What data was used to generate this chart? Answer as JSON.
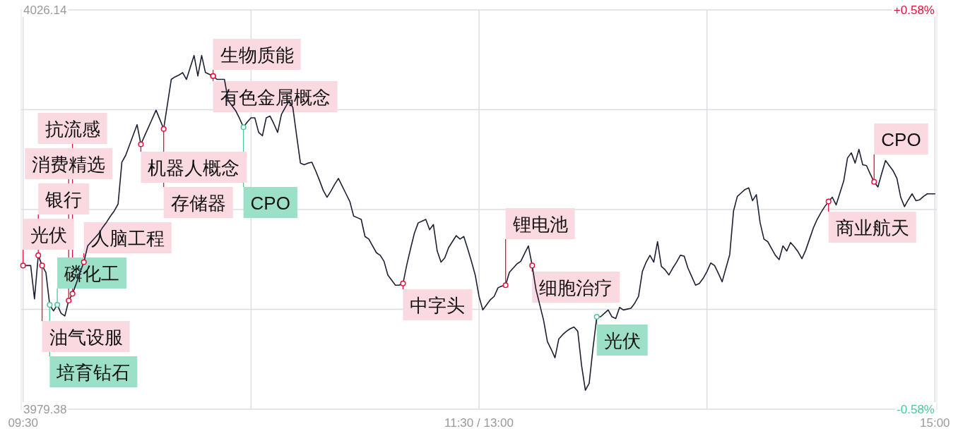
{
  "chart_data": {
    "type": "line",
    "categories": [
      "09:30",
      null,
      null,
      null,
      null,
      null,
      null,
      null,
      null,
      null,
      null,
      null,
      null,
      null,
      null,
      null,
      null,
      null,
      null,
      null,
      null,
      null,
      null,
      null,
      null,
      null,
      null,
      null,
      null,
      null,
      null,
      null,
      null,
      null,
      null,
      null,
      null,
      null,
      null,
      null,
      null,
      null,
      null,
      null,
      null,
      null,
      null,
      null,
      null,
      null,
      null,
      null,
      null,
      null,
      null,
      null,
      null,
      null,
      null,
      null,
      null,
      null,
      null,
      null,
      null,
      null,
      null,
      null,
      null,
      null,
      null,
      null,
      null,
      null,
      null,
      null,
      null,
      null,
      null,
      null,
      null,
      null,
      null,
      null,
      null,
      null,
      null,
      null,
      null,
      null,
      null,
      null,
      null,
      null,
      null,
      null,
      null,
      null,
      null,
      null,
      null,
      null,
      null,
      null,
      null,
      null,
      null,
      null,
      null,
      null,
      null,
      null,
      null,
      null,
      null,
      null,
      null,
      null,
      null,
      null,
      "11:30 / 13:00",
      null,
      null,
      null,
      null,
      null,
      null,
      null,
      null,
      null,
      null,
      null,
      null,
      null,
      null,
      null,
      null,
      null,
      null,
      null,
      null,
      null,
      null,
      null,
      null,
      null,
      null,
      null,
      null,
      null,
      null,
      null,
      null,
      null,
      null,
      null,
      null,
      null,
      null,
      null,
      null,
      null,
      null,
      null,
      null,
      null,
      null,
      null,
      null,
      null,
      null,
      null,
      null,
      null,
      null,
      null,
      null,
      null,
      null,
      null,
      null,
      null,
      null,
      null,
      null,
      null,
      null,
      null,
      null,
      null,
      null,
      null,
      null,
      null,
      null,
      null,
      null,
      null,
      null,
      null,
      null,
      null,
      null,
      null,
      null,
      null,
      null,
      null,
      null,
      null,
      null,
      null,
      null,
      null,
      null,
      null,
      null,
      null,
      null,
      null,
      null,
      null,
      null,
      null,
      null,
      null,
      null,
      null,
      null,
      null,
      null,
      null,
      null,
      null,
      null,
      null,
      null,
      null,
      null,
      null,
      "15:00"
    ],
    "series": [
      {
        "color": "#1d1f33",
        "values": [
          3996.2,
          3996.2,
          3996.2,
          3992.3,
          3997.4,
          3996.2,
          3995.4,
          3991.6,
          3990.9,
          3991.6,
          3990.6,
          3990.3,
          3992.1,
          3992.9,
          3994.1,
          3995.4,
          3996.6,
          3998.5,
          3999.0,
          3999.5,
          4000.0,
          4000.7,
          4001.3,
          4002.0,
          4002.6,
          4003.4,
          4008.3,
          4009.1,
          4010.3,
          4011.5,
          4012.7,
          4010.4,
          4011.4,
          4012.4,
          4013.4,
          4014.4,
          4013.3,
          4012.2,
          4015.1,
          4018.0,
          4018.3,
          4018.5,
          4018.8,
          4018.0,
          4019.4,
          4020.8,
          4018.4,
          4020.8,
          4018.8,
          4018.6,
          4018.4,
          4018.0,
          4018.0,
          4018.0,
          4015.5,
          4014.9,
          4014.3,
          4013.4,
          4012.4,
          4013.0,
          4013.5,
          4013.5,
          4011.8,
          4011.4,
          4013.5,
          4013.7,
          4012.8,
          4011.8,
          4013.9,
          4014.7,
          4015.5,
          4014.7,
          4011.4,
          4008.2,
          4008.0,
          4008.2,
          4008.3,
          4007.3,
          4006.2,
          4005.0,
          4004.2,
          4004.9,
          4005.7,
          4006.4,
          4005.5,
          4004.6,
          4003.7,
          4002.0,
          4001.8,
          4001.6,
          3999.6,
          3999.3,
          3998.5,
          3997.7,
          3997.4,
          3996.7,
          3995.1,
          3994.5,
          3993.9,
          3993.9,
          3994.1,
          3996.3,
          3998.2,
          4000.0,
          4001.2,
          4001.4,
          4001.6,
          4000.4,
          4001.0,
          3997.9,
          3996.6,
          3997.1,
          3998.3,
          3999.0,
          3999.7,
          3999.3,
          3999.6,
          3998.2,
          3996.7,
          3995.1,
          3992.6,
          3991.0,
          3991.6,
          3992.2,
          3992.6,
          3993.6,
          3993.8,
          3993.9,
          3995.4,
          3995.9,
          3996.4,
          3996.7,
          3997.6,
          3998.5,
          3996.2,
          3993.4,
          3991.6,
          3989.8,
          3987.3,
          3986.4,
          3985.4,
          3987.6,
          3988.1,
          3988.5,
          3988.8,
          3989.0,
          3988.5,
          3984.5,
          3981.6,
          3982.4,
          3986.5,
          3990.2,
          3990.2,
          3990.6,
          3991.0,
          3990.2,
          3990.0,
          3991.3,
          3991.0,
          3991.1,
          3991.2,
          3991.8,
          3992.6,
          3995.5,
          3996.6,
          3997.4,
          3996.6,
          3999.0,
          3996.1,
          3995.7,
          3995.1,
          3995.9,
          3996.6,
          3997.4,
          3997.3,
          3995.9,
          3994.9,
          3993.9,
          3994.1,
          3994.7,
          3995.5,
          3996.5,
          3996.2,
          3995.3,
          3994.3,
          3995.9,
          3997.5,
          4002.6,
          4004.3,
          4004.7,
          4005.1,
          4005.3,
          4003.8,
          4004.5,
          4001.2,
          3999.3,
          3999.0,
          3998.2,
          3997.4,
          3996.9,
          3998.5,
          3997.9,
          3998.9,
          3998.4,
          3997.8,
          3997.0,
          3998.0,
          3999.3,
          4000.6,
          4001.6,
          4002.4,
          4003.1,
          4003.7,
          4004.2,
          4003.3,
          4004.7,
          4006.1,
          4008.8,
          4009.4,
          4008.2,
          4009.8,
          4008.0,
          4007.9,
          4006.9,
          4006.0,
          4005.4,
          4007.0,
          4008.5,
          4007.9,
          4007.3,
          4006.4,
          4004.2,
          4003.1,
          4003.9,
          4004.6,
          4003.8,
          4003.9,
          4004.3,
          4004.6,
          4004.6,
          4004.6
        ]
      },
      {
        "type": "scatter",
        "color": "#e60f3c",
        "values": [
          3996.2,
          null,
          null,
          null,
          3997.4,
          3996.2,
          null,
          null,
          null,
          null,
          null,
          null,
          3992.1,
          3992.9,
          null,
          null,
          3996.6,
          null,
          null,
          null,
          null,
          null,
          null,
          null,
          null,
          null,
          null,
          null,
          null,
          null,
          null,
          4010.4,
          null,
          null,
          null,
          null,
          null,
          4012.2,
          null,
          null,
          null,
          null,
          null,
          null,
          null,
          null,
          null,
          null,
          null,
          null,
          4018.4,
          null,
          null,
          null,
          null,
          null,
          null,
          null,
          null,
          null,
          null,
          null,
          null,
          null,
          null,
          null,
          null,
          null,
          null,
          null,
          null,
          null,
          null,
          null,
          null,
          null,
          null,
          null,
          null,
          null,
          null,
          null,
          null,
          null,
          null,
          null,
          null,
          null,
          null,
          null,
          null,
          null,
          null,
          null,
          null,
          null,
          null,
          null,
          null,
          null,
          3994.1,
          null,
          null,
          null,
          null,
          null,
          null,
          null,
          null,
          null,
          null,
          null,
          null,
          null,
          null,
          null,
          null,
          null,
          null,
          null,
          null,
          null,
          null,
          null,
          null,
          null,
          null,
          3993.9,
          null,
          null,
          null,
          null,
          null,
          null,
          3996.2,
          null,
          null,
          null,
          null,
          null,
          null,
          null,
          null,
          null,
          null,
          null,
          null,
          null,
          null,
          null,
          null,
          null,
          null,
          null,
          null,
          null,
          null,
          null,
          null,
          null,
          null,
          null,
          null,
          null,
          null,
          null,
          null,
          null,
          null,
          null,
          null,
          null,
          null,
          null,
          null,
          null,
          null,
          null,
          null,
          null,
          null,
          null,
          null,
          null,
          null,
          null,
          null,
          null,
          null,
          null,
          null,
          null,
          null,
          null,
          null,
          null,
          null,
          null,
          null,
          null,
          null,
          null,
          null,
          null,
          null,
          null,
          null,
          null,
          null,
          null,
          null,
          null,
          4003.7,
          null,
          null,
          null,
          null,
          null,
          null,
          null,
          null,
          null,
          null,
          null,
          4006.0,
          null,
          null,
          null,
          null,
          null,
          null,
          null,
          null,
          null,
          null,
          null,
          null,
          null,
          null,
          null,
          null
        ],
        "value_labels": [
          "光伏",
          null,
          null,
          null,
          "银行",
          "油气设服",
          null,
          null,
          null,
          null,
          null,
          null,
          "消费精选",
          "抗流感",
          null,
          null,
          "人脑工程",
          null,
          null,
          null,
          null,
          null,
          null,
          null,
          null,
          null,
          null,
          null,
          null,
          null,
          null,
          "机器人概念",
          null,
          null,
          null,
          null,
          null,
          "存储器",
          null,
          null,
          null,
          null,
          null,
          null,
          null,
          null,
          null,
          null,
          null,
          null,
          "生物质能",
          null,
          null,
          null,
          null,
          null,
          null,
          null,
          null,
          null,
          null,
          null,
          null,
          null,
          null,
          null,
          null,
          null,
          null,
          null,
          null,
          null,
          null,
          null,
          null,
          null,
          null,
          null,
          null,
          null,
          null,
          null,
          null,
          null,
          null,
          null,
          null,
          null,
          null,
          null,
          null,
          null,
          null,
          null,
          null,
          null,
          null,
          null,
          null,
          null,
          "中字头",
          null,
          null,
          null,
          null,
          null,
          null,
          null,
          null,
          null,
          null,
          null,
          null,
          null,
          null,
          null,
          null,
          null,
          null,
          null,
          null,
          null,
          null,
          null,
          null,
          null,
          null,
          "锂电池",
          null,
          null,
          null,
          null,
          null,
          null,
          "细胞治疗",
          null,
          null,
          null,
          null,
          null,
          null,
          null,
          null,
          null,
          null,
          null,
          null,
          null,
          null,
          null,
          null,
          null,
          null,
          null,
          null,
          null,
          null,
          null,
          null,
          null,
          null,
          null,
          null,
          null,
          null,
          null,
          null,
          null,
          null,
          null,
          null,
          null,
          null,
          null,
          null,
          null,
          null,
          null,
          null,
          null,
          null,
          null,
          null,
          null,
          null,
          null,
          null,
          null,
          null,
          null,
          null,
          null,
          null,
          null,
          null,
          null,
          null,
          null,
          null,
          null,
          null,
          null,
          null,
          null,
          null,
          null,
          null,
          null,
          null,
          null,
          null,
          null,
          "商业航天",
          null,
          null,
          null,
          null,
          null,
          null,
          null,
          null,
          null,
          null,
          null,
          "CPO",
          null,
          null,
          null,
          null,
          null,
          null,
          null,
          null,
          null,
          null,
          null,
          null,
          null,
          null,
          null,
          null
        ]
      },
      {
        "type": "scatter",
        "color": "#e60f3c",
        "values": [
          null,
          null,
          null,
          null,
          null,
          null,
          null,
          null,
          null,
          null,
          null,
          null,
          null,
          null,
          null,
          null,
          null,
          null,
          null,
          null,
          null,
          null,
          null,
          null,
          null,
          null,
          null,
          null,
          null,
          null,
          null,
          null,
          null,
          null,
          null,
          null,
          null,
          null,
          null,
          null,
          null,
          null,
          null,
          null,
          null,
          null,
          null,
          null,
          null,
          null,
          4018.4,
          null,
          null,
          null,
          null,
          null,
          null,
          null,
          null,
          null,
          null,
          null,
          null,
          null,
          null,
          null,
          null,
          null,
          null,
          null,
          null,
          null,
          null,
          null,
          null,
          null,
          null,
          null,
          null,
          null,
          null,
          null,
          null,
          null,
          null,
          null,
          null,
          null,
          null,
          null,
          null,
          null,
          null,
          null,
          null,
          null,
          null,
          null,
          null,
          null,
          null,
          null,
          null,
          null,
          null,
          null,
          null,
          null,
          null,
          null,
          null,
          null,
          null,
          null,
          null,
          null,
          null,
          null,
          null,
          null,
          null,
          null,
          null,
          null,
          null,
          null,
          null,
          null,
          null,
          null,
          null,
          null,
          null,
          null,
          null,
          null,
          null,
          null,
          null,
          null,
          null,
          null,
          null,
          null,
          null,
          null,
          null,
          null,
          null,
          null,
          null,
          null,
          null,
          null,
          null,
          null,
          null,
          null,
          null,
          null,
          null,
          null,
          null,
          null,
          null,
          null,
          null,
          null,
          null,
          null,
          null,
          null,
          null,
          null,
          null,
          null,
          null,
          null,
          null,
          null,
          null,
          null,
          null,
          null,
          null,
          null,
          null,
          null,
          null,
          null,
          null,
          null,
          null,
          null,
          null,
          null,
          null,
          null,
          null,
          null,
          null,
          null,
          null,
          null,
          null,
          null,
          null,
          null,
          null,
          null,
          null,
          null,
          null,
          null,
          null,
          null,
          null,
          null,
          null,
          null,
          null,
          null,
          null,
          null,
          null,
          null,
          null,
          null,
          null,
          null,
          null,
          null,
          null,
          null,
          null,
          null,
          null,
          null,
          null,
          null,
          null
        ],
        "value_labels": [
          null,
          null,
          null,
          null,
          null,
          null,
          null,
          null,
          null,
          null,
          null,
          null,
          null,
          null,
          null,
          null,
          null,
          null,
          null,
          null,
          null,
          null,
          null,
          null,
          null,
          null,
          null,
          null,
          null,
          null,
          null,
          null,
          null,
          null,
          null,
          null,
          null,
          null,
          null,
          null,
          null,
          null,
          null,
          null,
          null,
          null,
          null,
          null,
          null,
          null,
          "有色金属概念",
          null,
          null,
          null,
          null,
          null,
          null,
          null,
          null,
          null,
          null,
          null,
          null,
          null,
          null,
          null,
          null,
          null,
          null,
          null,
          null,
          null,
          null,
          null,
          null,
          null,
          null,
          null,
          null,
          null,
          null,
          null,
          null,
          null,
          null,
          null,
          null,
          null,
          null,
          null,
          null,
          null,
          null,
          null,
          null,
          null,
          null,
          null,
          null,
          null,
          null,
          null,
          null,
          null,
          null,
          null,
          null,
          null,
          null,
          null,
          null,
          null,
          null,
          null,
          null,
          null,
          null,
          null,
          null,
          null,
          null,
          null,
          null,
          null,
          null,
          null,
          null,
          null,
          null,
          null,
          null,
          null,
          null,
          null,
          null,
          null,
          null,
          null,
          null,
          null,
          null,
          null,
          null,
          null,
          null,
          null,
          null,
          null,
          null,
          null,
          null,
          null,
          null,
          null,
          null,
          null,
          null,
          null,
          null,
          null,
          null,
          null,
          null,
          null,
          null,
          null,
          null,
          null,
          null,
          null,
          null,
          null,
          null,
          null,
          null,
          null,
          null,
          null,
          null,
          null,
          null,
          null,
          null,
          null,
          null,
          null,
          null,
          null,
          null,
          null,
          null,
          null,
          null,
          null,
          null,
          null,
          null,
          null,
          null,
          null,
          null,
          null,
          null,
          null,
          null,
          null,
          null,
          null,
          null,
          null,
          null,
          null,
          null,
          null,
          null,
          null,
          null,
          null,
          null,
          null,
          null,
          null,
          null,
          null,
          null,
          null,
          null,
          null,
          null,
          null,
          null,
          null,
          null,
          null,
          null,
          null,
          null,
          null,
          null,
          null,
          null
        ]
      },
      {
        "type": "scatter",
        "color": "#4cc79b",
        "values": [
          null,
          null,
          null,
          null,
          null,
          null,
          null,
          3991.6,
          null,
          3991.6,
          null,
          null,
          null,
          null,
          null,
          null,
          null,
          null,
          null,
          null,
          null,
          null,
          null,
          null,
          null,
          null,
          null,
          null,
          null,
          null,
          null,
          null,
          null,
          null,
          null,
          null,
          null,
          null,
          null,
          null,
          null,
          null,
          null,
          null,
          null,
          null,
          null,
          null,
          null,
          null,
          null,
          null,
          null,
          null,
          null,
          null,
          null,
          null,
          4012.4,
          null,
          null,
          null,
          null,
          null,
          null,
          null,
          null,
          null,
          null,
          null,
          null,
          null,
          null,
          null,
          null,
          null,
          null,
          null,
          null,
          null,
          null,
          null,
          null,
          null,
          null,
          null,
          null,
          null,
          null,
          null,
          null,
          null,
          null,
          null,
          null,
          null,
          null,
          null,
          null,
          null,
          null,
          null,
          null,
          null,
          null,
          null,
          null,
          null,
          null,
          null,
          null,
          null,
          null,
          null,
          null,
          null,
          null,
          null,
          null,
          null,
          null,
          null,
          null,
          null,
          null,
          null,
          null,
          null,
          null,
          null,
          null,
          null,
          null,
          null,
          null,
          null,
          null,
          null,
          null,
          null,
          null,
          null,
          null,
          null,
          null,
          null,
          null,
          null,
          null,
          null,
          null,
          3990.2,
          null,
          null,
          null,
          null,
          null,
          null,
          null,
          null,
          null,
          null,
          null,
          null,
          null,
          null,
          null,
          null,
          null,
          null,
          null,
          null,
          null,
          null,
          null,
          null,
          null,
          null,
          null,
          null,
          null,
          null,
          null,
          null,
          null,
          null,
          null,
          null,
          null,
          null,
          null,
          null,
          null,
          null,
          null,
          null,
          null,
          null,
          null,
          null,
          null,
          null,
          null,
          null,
          null,
          null,
          null,
          null,
          null,
          null,
          null,
          null,
          null,
          null,
          null,
          null,
          null,
          null,
          null,
          null,
          null,
          null,
          null,
          null,
          null,
          null,
          null,
          null,
          null,
          null,
          null,
          null,
          null,
          null,
          null,
          null,
          null,
          null,
          null,
          null,
          null
        ],
        "value_labels": [
          null,
          null,
          null,
          null,
          null,
          null,
          null,
          "培育钻石",
          null,
          "磷化工",
          null,
          null,
          null,
          null,
          null,
          null,
          null,
          null,
          null,
          null,
          null,
          null,
          null,
          null,
          null,
          null,
          null,
          null,
          null,
          null,
          null,
          null,
          null,
          null,
          null,
          null,
          null,
          null,
          null,
          null,
          null,
          null,
          null,
          null,
          null,
          null,
          null,
          null,
          null,
          null,
          null,
          null,
          null,
          null,
          null,
          null,
          null,
          null,
          "CPO",
          null,
          null,
          null,
          null,
          null,
          null,
          null,
          null,
          null,
          null,
          null,
          null,
          null,
          null,
          null,
          null,
          null,
          null,
          null,
          null,
          null,
          null,
          null,
          null,
          null,
          null,
          null,
          null,
          null,
          null,
          null,
          null,
          null,
          null,
          null,
          null,
          null,
          null,
          null,
          null,
          null,
          null,
          null,
          null,
          null,
          null,
          null,
          null,
          null,
          null,
          null,
          null,
          null,
          null,
          null,
          null,
          null,
          null,
          null,
          null,
          null,
          null,
          null,
          null,
          null,
          null,
          null,
          null,
          null,
          null,
          null,
          null,
          null,
          null,
          null,
          null,
          null,
          null,
          null,
          null,
          null,
          null,
          null,
          null,
          null,
          null,
          null,
          null,
          null,
          null,
          null,
          null,
          "光伏",
          null,
          null,
          null,
          null,
          null,
          null,
          null,
          null,
          null,
          null,
          null,
          null,
          null,
          null,
          null,
          null,
          null,
          null,
          null,
          null,
          null,
          null,
          null,
          null,
          null,
          null,
          null,
          null,
          null,
          null,
          null,
          null,
          null,
          null,
          null,
          null,
          null,
          null,
          null,
          null,
          null,
          null,
          null,
          null,
          null,
          null,
          null,
          null,
          null,
          null,
          null,
          null,
          null,
          null,
          null,
          null,
          null,
          null,
          null,
          null,
          null,
          null,
          null,
          null,
          null,
          null,
          null,
          null,
          null,
          null,
          null,
          null,
          null,
          null,
          null,
          null,
          null,
          null,
          null,
          null,
          null,
          null,
          null,
          null,
          null,
          null,
          null,
          null,
          null
        ]
      }
    ],
    "ylim": [
      3979.38,
      4026.14
    ],
    "yticks": [
      3979.38,
      {
        "value": 3991.07,
        "label": null
      },
      {
        "value": 4002.76,
        "label": null
      },
      {
        "value": 4014.45,
        "label": null
      },
      4026.14
    ],
    "y2lim": [
      -0.58,
      0.58
    ],
    "y2ticks": [
      {
        "value": -0.58,
        "label": "-0.58%"
      },
      {
        "value": 0.58,
        "label": "+0.58%"
      }
    ],
    "grid": true
  }
}
